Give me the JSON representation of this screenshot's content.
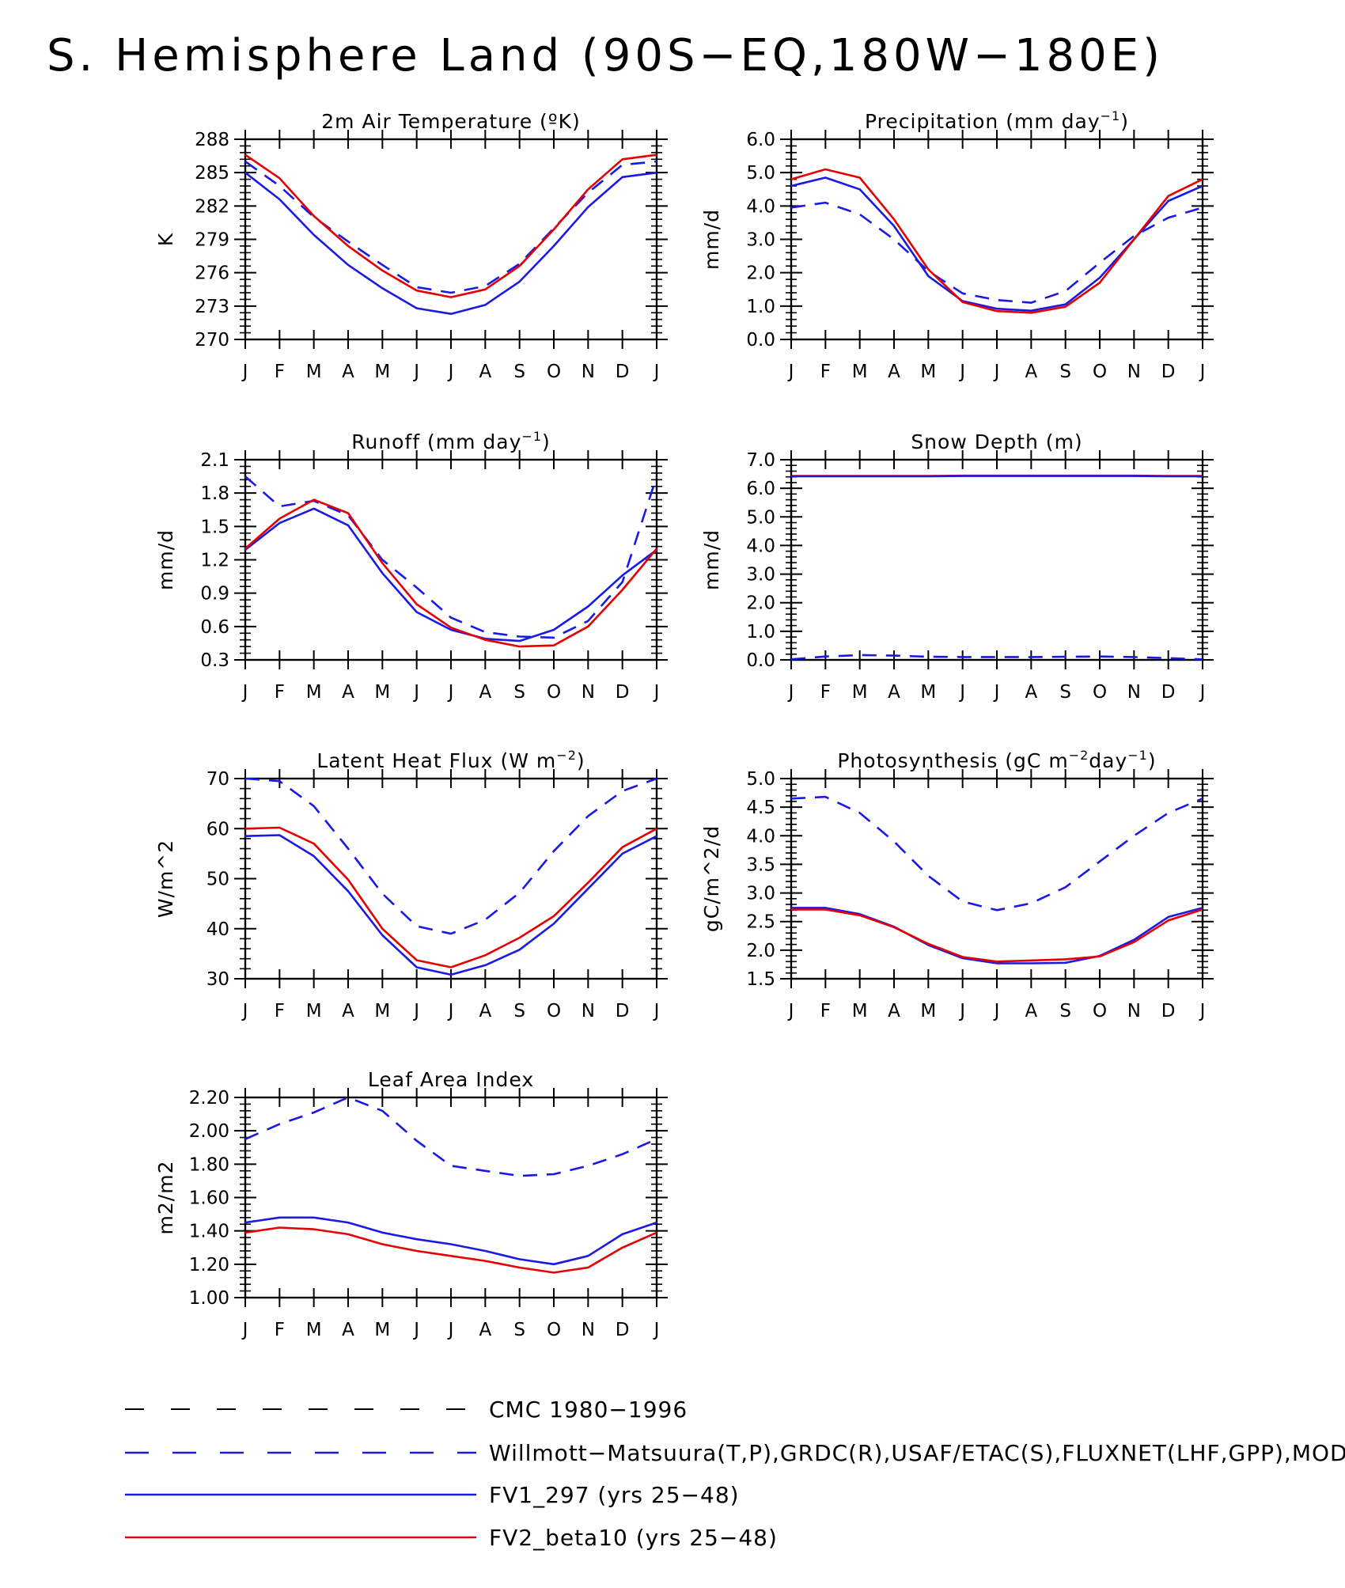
{
  "title": "S. Hemisphere Land (90S−EQ,180W−180E)",
  "months": [
    "J",
    "F",
    "M",
    "A",
    "M",
    "J",
    "J",
    "A",
    "S",
    "O",
    "N",
    "D",
    "J"
  ],
  "colors": {
    "blue": "#1a1ae6",
    "red": "#e60000",
    "black": "#000000"
  },
  "legend": [
    {
      "label": "CMC 1980−1996",
      "color": "black",
      "style": "dashed"
    },
    {
      "label": "Willmott−Matsuura(T,P),GRDC(R),USAF/ETAC(S),FLUXNET(LHF,GPP),MODIS(LAI)",
      "color": "blue",
      "style": "dashed"
    },
    {
      "label": "FV1_297 (yrs 25−48)",
      "color": "blue",
      "style": "solid"
    },
    {
      "label": "FV2_beta10 (yrs 25−48)",
      "color": "red",
      "style": "solid"
    }
  ],
  "chart_data": [
    {
      "type": "line",
      "title": "2m Air Temperature (ºK)",
      "ylabel": "K",
      "ylim": [
        270,
        288
      ],
      "yticks": [
        "270",
        "273",
        "276",
        "279",
        "282",
        "285",
        "288"
      ],
      "series": [
        {
          "name": "Willmott−Matsuura(T,P),GRDC(R),USAF/ETAC(S),FLUXNET(LHF,GPP),MODIS(LAI)",
          "color": "blue",
          "style": "dashed",
          "values": [
            286.0,
            283.8,
            281.0,
            278.8,
            276.7,
            274.7,
            274.2,
            274.8,
            276.8,
            280.0,
            283.2,
            285.7,
            286.0
          ]
        },
        {
          "name": "FV1_297 (yrs 25−48)",
          "color": "blue",
          "style": "solid",
          "values": [
            285.0,
            282.6,
            279.4,
            276.7,
            274.6,
            272.8,
            272.3,
            273.1,
            275.2,
            278.4,
            281.9,
            284.6,
            285.0
          ]
        },
        {
          "name": "FV2_beta10 (yrs 25−48)",
          "color": "red",
          "style": "solid",
          "values": [
            286.6,
            284.5,
            281.1,
            278.4,
            276.2,
            274.4,
            273.8,
            274.5,
            276.6,
            279.9,
            283.5,
            286.2,
            286.6
          ]
        }
      ]
    },
    {
      "type": "line",
      "title": "Precipitation (mm day",
      "title_sup": "−1",
      "title_end": ")",
      "ylabel": "mm/d",
      "ylim": [
        0,
        6
      ],
      "yticks": [
        "0.0",
        "1.0",
        "2.0",
        "3.0",
        "4.0",
        "5.0",
        "6.0"
      ],
      "series": [
        {
          "name": "Willmott−Matsuura(T,P),GRDC(R),USAF/ETAC(S),FLUXNET(LHF,GPP),MODIS(LAI)",
          "color": "blue",
          "style": "dashed",
          "values": [
            3.95,
            4.1,
            3.75,
            3.0,
            2.05,
            1.38,
            1.18,
            1.1,
            1.45,
            2.3,
            3.1,
            3.65,
            3.95
          ]
        },
        {
          "name": "FV1_297 (yrs 25−48)",
          "color": "blue",
          "style": "solid",
          "values": [
            4.6,
            4.85,
            4.5,
            3.4,
            1.9,
            1.15,
            0.92,
            0.86,
            1.05,
            1.85,
            3.0,
            4.15,
            4.6
          ]
        },
        {
          "name": "FV2_beta10 (yrs 25−48)",
          "color": "red",
          "style": "solid",
          "values": [
            4.8,
            5.1,
            4.85,
            3.6,
            2.1,
            1.12,
            0.85,
            0.8,
            0.98,
            1.7,
            3.0,
            4.3,
            4.8
          ]
        }
      ]
    },
    {
      "type": "line",
      "title": "Runoff (mm day",
      "title_sup": "−1",
      "title_end": ")",
      "ylabel": "mm/d",
      "ylim": [
        0.3,
        2.1
      ],
      "yticks": [
        "0.3",
        "0.6",
        "0.9",
        "1.2",
        "1.5",
        "1.8",
        "2.1"
      ],
      "series": [
        {
          "name": "Willmott−Matsuura(T,P),GRDC(R),USAF/ETAC(S),FLUXNET(LHF,GPP),MODIS(LAI)",
          "color": "blue",
          "style": "dashed",
          "values": [
            1.95,
            1.68,
            1.73,
            1.6,
            1.2,
            0.95,
            0.68,
            0.55,
            0.51,
            0.5,
            0.65,
            1.0,
            1.95
          ]
        },
        {
          "name": "FV1_297 (yrs 25−48)",
          "color": "blue",
          "style": "solid",
          "values": [
            1.29,
            1.53,
            1.66,
            1.51,
            1.08,
            0.73,
            0.57,
            0.49,
            0.47,
            0.57,
            0.78,
            1.06,
            1.29
          ]
        },
        {
          "name": "FV2_beta10 (yrs 25−48)",
          "color": "red",
          "style": "solid",
          "values": [
            1.3,
            1.57,
            1.74,
            1.62,
            1.17,
            0.8,
            0.59,
            0.48,
            0.42,
            0.43,
            0.6,
            0.93,
            1.3
          ]
        }
      ]
    },
    {
      "type": "line",
      "title": "Snow Depth (m)",
      "ylabel": "mm/d",
      "ylim": [
        0,
        7
      ],
      "yticks": [
        "0.0",
        "1.0",
        "2.0",
        "3.0",
        "4.0",
        "5.0",
        "6.0",
        "7.0"
      ],
      "series": [
        {
          "name": "Willmott−Matsuura(T,P),GRDC(R),USAF/ETAC(S),FLUXNET(LHF,GPP),MODIS(LAI)",
          "color": "blue",
          "style": "dashed",
          "values": [
            0.02,
            0.12,
            0.17,
            0.15,
            0.11,
            0.1,
            0.1,
            0.1,
            0.11,
            0.12,
            0.1,
            0.06,
            0.02
          ]
        },
        {
          "name": "FV2_beta10 (yrs 25−48)",
          "color": "red",
          "style": "solid",
          "values": [
            6.43,
            6.43,
            6.43,
            6.43,
            6.43,
            6.44,
            6.44,
            6.44,
            6.44,
            6.44,
            6.44,
            6.43,
            6.43
          ]
        },
        {
          "name": "FV1_297 (yrs 25−48)",
          "color": "blue",
          "style": "solid",
          "values": [
            6.42,
            6.42,
            6.42,
            6.42,
            6.42,
            6.43,
            6.43,
            6.43,
            6.43,
            6.43,
            6.43,
            6.42,
            6.42
          ]
        }
      ]
    },
    {
      "type": "line",
      "title": "Latent Heat Flux (W m",
      "title_sup": "−2",
      "title_end": ")",
      "ylabel": "W/m^2",
      "ylim": [
        30,
        70
      ],
      "yticks": [
        "30",
        "40",
        "50",
        "60",
        "70"
      ],
      "series": [
        {
          "name": "Willmott−Matsuura(T,P),GRDC(R),USAF/ETAC(S),FLUXNET(LHF,GPP),MODIS(LAI)",
          "color": "blue",
          "style": "dashed",
          "values": [
            70.0,
            69.5,
            64.5,
            56.0,
            47.0,
            40.5,
            39.0,
            41.8,
            47.2,
            55.5,
            62.5,
            67.5,
            70.0
          ]
        },
        {
          "name": "FV1_297 (yrs 25−48)",
          "color": "blue",
          "style": "solid",
          "values": [
            58.5,
            58.7,
            54.5,
            47.5,
            38.7,
            32.3,
            30.8,
            32.7,
            35.8,
            41.0,
            48.0,
            55.0,
            58.5
          ]
        },
        {
          "name": "FV2_beta10 (yrs 25−48)",
          "color": "red",
          "style": "solid",
          "values": [
            60.0,
            60.2,
            57.0,
            49.8,
            40.0,
            33.7,
            32.3,
            34.7,
            38.2,
            42.5,
            49.2,
            56.3,
            60.0
          ]
        }
      ]
    },
    {
      "type": "line",
      "title": "Photosynthesis (gC m",
      "title_sup": "−2",
      "title_mid": "day",
      "title_sup2": "−1",
      "title_end": ")",
      "ylabel": "gC/m^2/d",
      "ylim": [
        1.5,
        5.0
      ],
      "yticks": [
        "1.5",
        "2.0",
        "2.5",
        "3.0",
        "3.5",
        "4.0",
        "4.5",
        "5.0"
      ],
      "series": [
        {
          "name": "Willmott−Matsuura(T,P),GRDC(R),USAF/ETAC(S),FLUXNET(LHF,GPP),MODIS(LAI)",
          "color": "blue",
          "style": "dashed",
          "values": [
            4.65,
            4.68,
            4.4,
            3.9,
            3.3,
            2.85,
            2.7,
            2.82,
            3.1,
            3.55,
            4.0,
            4.4,
            4.65
          ]
        },
        {
          "name": "FV1_297 (yrs 25−48)",
          "color": "blue",
          "style": "solid",
          "values": [
            2.74,
            2.74,
            2.63,
            2.41,
            2.09,
            1.86,
            1.77,
            1.77,
            1.78,
            1.9,
            2.18,
            2.58,
            2.74
          ]
        },
        {
          "name": "FV2_beta10 (yrs 25−48)",
          "color": "red",
          "style": "solid",
          "values": [
            2.71,
            2.71,
            2.61,
            2.4,
            2.11,
            1.88,
            1.8,
            1.82,
            1.84,
            1.89,
            2.14,
            2.52,
            2.71
          ]
        }
      ]
    },
    {
      "type": "line",
      "title": "Leaf Area Index",
      "ylabel": "m2/m2",
      "ylim": [
        1.0,
        2.2
      ],
      "yticks": [
        "1.00",
        "1.20",
        "1.40",
        "1.60",
        "1.80",
        "2.00",
        "2.20"
      ],
      "series": [
        {
          "name": "Willmott−Matsuura(T,P),GRDC(R),USAF/ETAC(S),FLUXNET(LHF,GPP),MODIS(LAI)",
          "color": "blue",
          "style": "dashed",
          "values": [
            1.95,
            2.04,
            2.11,
            2.2,
            2.12,
            1.94,
            1.79,
            1.76,
            1.73,
            1.74,
            1.79,
            1.86,
            1.95
          ]
        },
        {
          "name": "FV1_297 (yrs 25−48)",
          "color": "blue",
          "style": "solid",
          "values": [
            1.45,
            1.48,
            1.48,
            1.45,
            1.39,
            1.35,
            1.32,
            1.28,
            1.23,
            1.2,
            1.25,
            1.38,
            1.45
          ]
        },
        {
          "name": "FV2_beta10 (yrs 25−48)",
          "color": "red",
          "style": "solid",
          "values": [
            1.39,
            1.42,
            1.41,
            1.38,
            1.32,
            1.28,
            1.25,
            1.22,
            1.18,
            1.15,
            1.18,
            1.3,
            1.39
          ]
        }
      ]
    }
  ]
}
